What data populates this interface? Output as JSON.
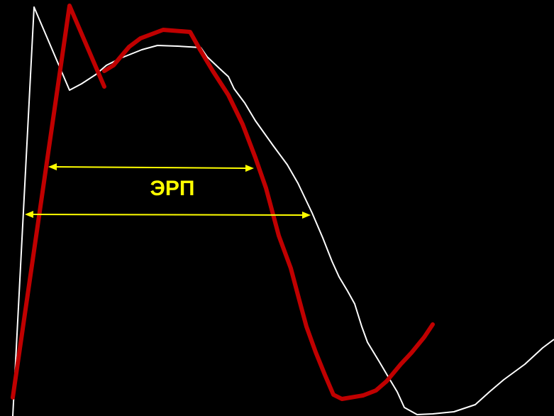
{
  "label_text": "ЭРП",
  "colors": {
    "background": "#000000",
    "white_curve": "#ffffff",
    "red_curve": "#c00000",
    "arrows": "#ffff00",
    "label": "#ffff00"
  }
}
